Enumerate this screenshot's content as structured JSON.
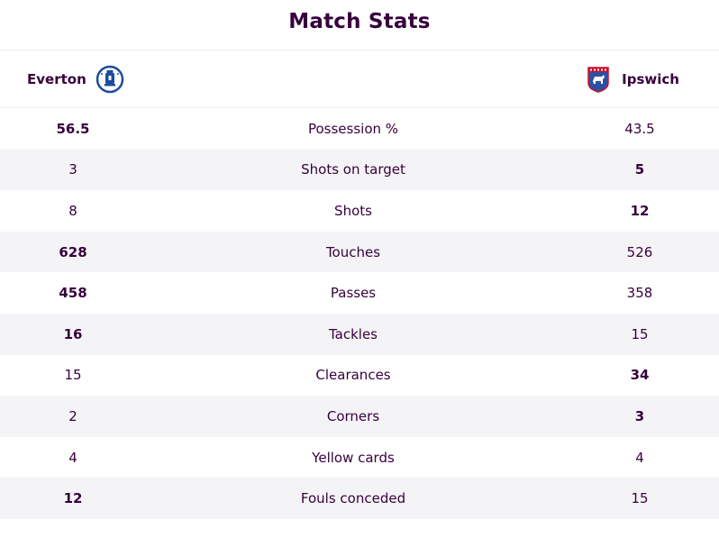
{
  "header": {
    "title": "Match Stats"
  },
  "teams": {
    "home": {
      "name": "Everton",
      "crest_icon": "everton-crest-icon",
      "crest_color": "#1d4c9c"
    },
    "away": {
      "name": "Ipswich",
      "crest_icon": "ipswich-crest-icon",
      "crest_color": "#2f4fa3"
    }
  },
  "stats": [
    {
      "label": "Possession %",
      "home": "56.5",
      "away": "43.5",
      "leader": "home"
    },
    {
      "label": "Shots on target",
      "home": "3",
      "away": "5",
      "leader": "away"
    },
    {
      "label": "Shots",
      "home": "8",
      "away": "12",
      "leader": "away"
    },
    {
      "label": "Touches",
      "home": "628",
      "away": "526",
      "leader": "home"
    },
    {
      "label": "Passes",
      "home": "458",
      "away": "358",
      "leader": "home"
    },
    {
      "label": "Tackles",
      "home": "16",
      "away": "15",
      "leader": "home"
    },
    {
      "label": "Clearances",
      "home": "15",
      "away": "34",
      "leader": "away"
    },
    {
      "label": "Corners",
      "home": "2",
      "away": "3",
      "leader": "away"
    },
    {
      "label": "Yellow cards",
      "home": "4",
      "away": "4",
      "leader": "none"
    },
    {
      "label": "Fouls conceded",
      "home": "12",
      "away": "15",
      "leader": "home"
    }
  ],
  "colors": {
    "text": "#37003c",
    "stripe": "#f4f4f6",
    "divider": "#ececec"
  }
}
